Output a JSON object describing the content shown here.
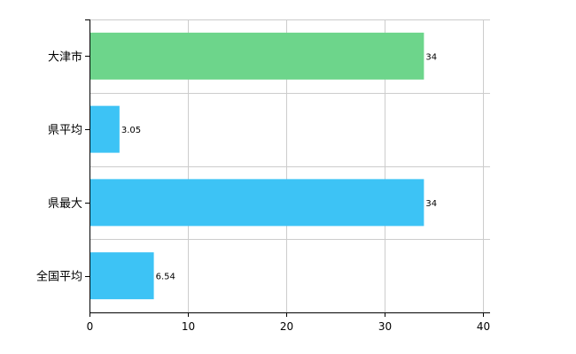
{
  "chart_data": {
    "type": "bar",
    "orientation": "horizontal",
    "categories": [
      "大津市",
      "県平均",
      "県最大",
      "全国平均"
    ],
    "values": [
      34,
      3.05,
      34,
      6.54
    ],
    "value_labels": [
      "34",
      "3.05",
      "34",
      "6.54"
    ],
    "bar_colors": [
      "#6dd58b",
      "#3dc3f5",
      "#3dc3f5",
      "#3dc3f5"
    ],
    "xlim": [
      0,
      40
    ],
    "x_ticks": [
      0,
      10,
      20,
      30,
      40
    ],
    "grid": true,
    "title": "",
    "xlabel": "",
    "ylabel": ""
  }
}
